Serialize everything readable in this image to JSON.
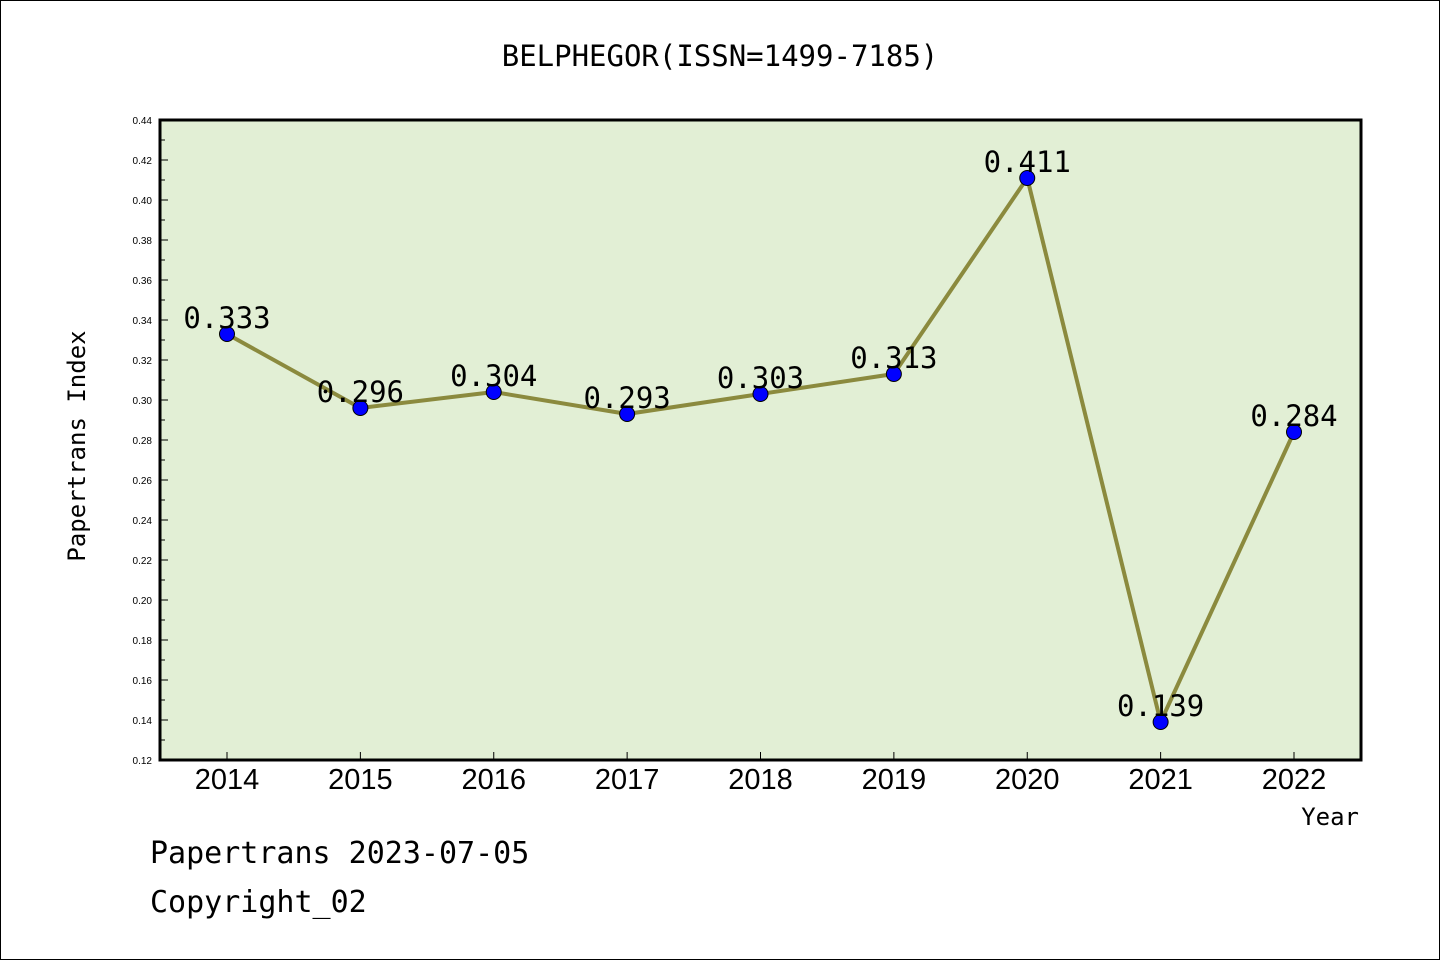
{
  "chart_data": {
    "type": "line",
    "title": "BELPHEGOR(ISSN=1499-7185)",
    "xlabel": "Year",
    "ylabel": "Papertrans Index",
    "categories": [
      "2014",
      "2015",
      "2016",
      "2017",
      "2018",
      "2019",
      "2020",
      "2021",
      "2022"
    ],
    "series": [
      {
        "values": [
          0.333,
          0.296,
          0.304,
          0.293,
          0.303,
          0.313,
          0.411,
          0.139,
          0.284
        ]
      }
    ],
    "data_labels": [
      "0.333",
      "0.296",
      "0.304",
      "0.293",
      "0.303",
      "0.313",
      "0.411",
      "0.139",
      "0.284"
    ],
    "ylim": [
      0.12,
      0.44
    ],
    "yticks": [
      "0.12",
      "0.14",
      "0.16",
      "0.18",
      "0.20",
      "0.22",
      "0.24",
      "0.26",
      "0.28",
      "0.30",
      "0.32",
      "0.34",
      "0.36",
      "0.38",
      "0.40",
      "0.42",
      "0.44"
    ],
    "grid": false,
    "colors": {
      "plot_background": "#e2efd5",
      "line": "#8b8a3e",
      "marker": "#0000ff"
    }
  },
  "footer": {
    "line1": "Papertrans 2023-07-05",
    "line2": "Copyright_02"
  }
}
